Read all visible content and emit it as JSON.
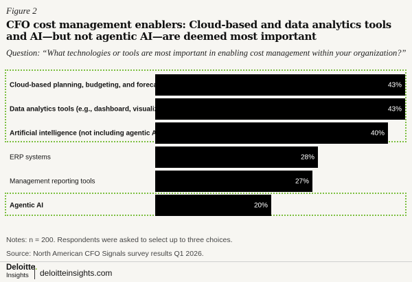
{
  "figure_label": "Figure 2",
  "chart_data": {
    "type": "bar",
    "orientation": "horizontal",
    "title": "CFO cost management enablers: Cloud-based and data analytics tools and AI—but not agentic AI—are deemed most important",
    "question": "Question: “What technologies or tools are most important in enabling cost management within your organization?”",
    "categories": [
      "Cloud-based planning, budgeting, and forecasting",
      "Data analytics tools (e.g., dashboard, visualization)",
      "Artificial intelligence (not including agentic AI)",
      "ERP systems",
      "Management reporting tools",
      "Agentic AI"
    ],
    "values": [
      43,
      43,
      40,
      28,
      27,
      20
    ],
    "value_labels": [
      "43%",
      "43%",
      "40%",
      "28%",
      "27%",
      "20%"
    ],
    "highlighted": [
      true,
      true,
      true,
      false,
      false,
      true
    ],
    "xlim": [
      0,
      43
    ],
    "unit": "%"
  },
  "notes": "Notes: n = 200. Respondents were asked to select up to three choices.",
  "source": "Source: North American CFO Signals survey results Q1 2026.",
  "footer": {
    "brand": "Deloitte",
    "brand_dot": ".",
    "brand_sub": "Insights",
    "site": "deloitteinsights.com"
  },
  "colors": {
    "bar": "#000000",
    "highlight_border": "#7cbf3f",
    "background": "#f7f6f2"
  }
}
